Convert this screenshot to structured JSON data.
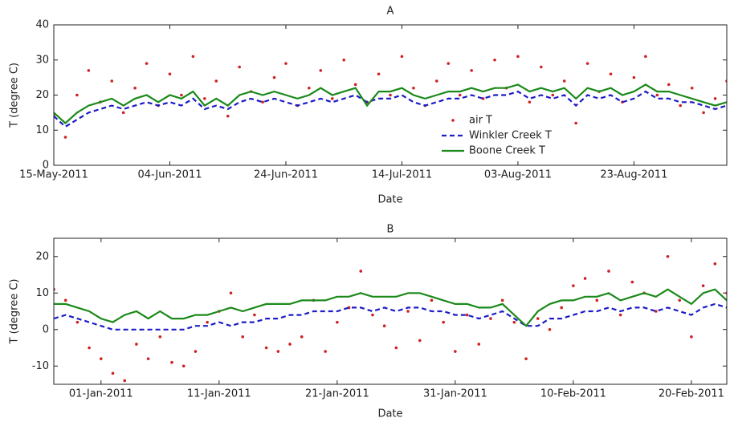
{
  "chart_data": [
    {
      "type": "line",
      "title": "A",
      "x_label": "Date",
      "y_label": "T (degree C)",
      "x": [
        "15-May-2011",
        "17-May-2011",
        "19-May-2011",
        "21-May-2011",
        "23-May-2011",
        "25-May-2011",
        "27-May-2011",
        "29-May-2011",
        "31-May-2011",
        "02-Jun-2011",
        "04-Jun-2011",
        "06-Jun-2011",
        "08-Jun-2011",
        "10-Jun-2011",
        "12-Jun-2011",
        "14-Jun-2011",
        "16-Jun-2011",
        "18-Jun-2011",
        "20-Jun-2011",
        "22-Jun-2011",
        "24-Jun-2011",
        "26-Jun-2011",
        "28-Jun-2011",
        "30-Jun-2011",
        "02-Jul-2011",
        "04-Jul-2011",
        "06-Jul-2011",
        "08-Jul-2011",
        "10-Jul-2011",
        "12-Jul-2011",
        "14-Jul-2011",
        "16-Jul-2011",
        "18-Jul-2011",
        "20-Jul-2011",
        "22-Jul-2011",
        "24-Jul-2011",
        "26-Jul-2011",
        "28-Jul-2011",
        "30-Jul-2011",
        "01-Aug-2011",
        "03-Aug-2011",
        "05-Aug-2011",
        "07-Aug-2011",
        "09-Aug-2011",
        "11-Aug-2011",
        "13-Aug-2011",
        "15-Aug-2011",
        "17-Aug-2011",
        "19-Aug-2011",
        "21-Aug-2011",
        "23-Aug-2011",
        "25-Aug-2011",
        "27-Aug-2011",
        "29-Aug-2011",
        "31-Aug-2011",
        "02-Sep-2011",
        "04-Sep-2011",
        "06-Sep-2011",
        "08-Sep-2011"
      ],
      "series": [
        {
          "name": "air T",
          "color": "#d02020",
          "style": "dots",
          "values": [
            14,
            8,
            20,
            27,
            18,
            24,
            15,
            22,
            29,
            17,
            26,
            20,
            31,
            19,
            24,
            14,
            28,
            21,
            18,
            25,
            29,
            17,
            22,
            27,
            19,
            30,
            23,
            18,
            26,
            20,
            31,
            22,
            17,
            24,
            29,
            20,
            27,
            19,
            30,
            22,
            31,
            18,
            28,
            20,
            24,
            12,
            29,
            21,
            26,
            18,
            25,
            31,
            20,
            23,
            17,
            22,
            15,
            19,
            24
          ]
        },
        {
          "name": "Winkler Creek T",
          "color": "#1c1cc8",
          "style": "dashed",
          "values": [
            14,
            11,
            13,
            15,
            16,
            17,
            16,
            17,
            18,
            17,
            18,
            17,
            19,
            16,
            17,
            16,
            18,
            19,
            18,
            19,
            18,
            17,
            18,
            19,
            18,
            19,
            20,
            18,
            19,
            19,
            20,
            18,
            17,
            18,
            19,
            19,
            20,
            19,
            20,
            20,
            21,
            19,
            20,
            19,
            20,
            17,
            20,
            19,
            20,
            18,
            19,
            21,
            19,
            19,
            18,
            18,
            17,
            16,
            17
          ]
        },
        {
          "name": "Boone Creek T",
          "color": "#1a8a1a",
          "style": "solid",
          "values": [
            15,
            12,
            15,
            17,
            18,
            19,
            17,
            19,
            20,
            18,
            20,
            19,
            21,
            17,
            19,
            17,
            20,
            21,
            20,
            21,
            20,
            19,
            20,
            22,
            20,
            21,
            22,
            17,
            21,
            21,
            22,
            20,
            19,
            20,
            21,
            21,
            22,
            21,
            22,
            22,
            23,
            21,
            22,
            21,
            22,
            19,
            22,
            21,
            22,
            20,
            21,
            23,
            21,
            21,
            20,
            19,
            18,
            17,
            18
          ]
        }
      ],
      "xlim": [
        "15-May-2011",
        "08-Sep-2011"
      ],
      "xticks": [
        "15-May-2011",
        "04-Jun-2011",
        "24-Jun-2011",
        "14-Jul-2011",
        "03-Aug-2011",
        "23-Aug-2011"
      ],
      "ylim": [
        0,
        40
      ],
      "yticks": [
        0,
        10,
        20,
        30,
        40
      ],
      "legend": "center"
    },
    {
      "type": "line",
      "title": "B",
      "x_label": "Date",
      "y_label": "T (degree C)",
      "x": [
        "28-Dec-2010",
        "29-Dec-2010",
        "30-Dec-2010",
        "31-Dec-2010",
        "01-Jan-2011",
        "02-Jan-2011",
        "03-Jan-2011",
        "04-Jan-2011",
        "05-Jan-2011",
        "06-Jan-2011",
        "07-Jan-2011",
        "08-Jan-2011",
        "09-Jan-2011",
        "10-Jan-2011",
        "11-Jan-2011",
        "12-Jan-2011",
        "13-Jan-2011",
        "14-Jan-2011",
        "15-Jan-2011",
        "16-Jan-2011",
        "17-Jan-2011",
        "18-Jan-2011",
        "19-Jan-2011",
        "20-Jan-2011",
        "21-Jan-2011",
        "22-Jan-2011",
        "23-Jan-2011",
        "24-Jan-2011",
        "25-Jan-2011",
        "26-Jan-2011",
        "27-Jan-2011",
        "28-Jan-2011",
        "29-Jan-2011",
        "30-Jan-2011",
        "31-Jan-2011",
        "01-Feb-2011",
        "02-Feb-2011",
        "03-Feb-2011",
        "04-Feb-2011",
        "05-Feb-2011",
        "06-Feb-2011",
        "07-Feb-2011",
        "08-Feb-2011",
        "09-Feb-2011",
        "10-Feb-2011",
        "11-Feb-2011",
        "12-Feb-2011",
        "13-Feb-2011",
        "14-Feb-2011",
        "15-Feb-2011",
        "16-Feb-2011",
        "17-Feb-2011",
        "18-Feb-2011",
        "19-Feb-2011",
        "20-Feb-2011",
        "21-Feb-2011",
        "22-Feb-2011",
        "23-Feb-2011"
      ],
      "series": [
        {
          "name": "air T",
          "color": "#d02020",
          "style": "dots",
          "values": [
            11,
            8,
            2,
            -5,
            -8,
            -12,
            -14,
            -4,
            -8,
            -2,
            -9,
            -10,
            -6,
            2,
            5,
            10,
            -2,
            4,
            -5,
            -6,
            -4,
            -2,
            8,
            -6,
            2,
            6,
            16,
            4,
            1,
            -5,
            5,
            -3,
            8,
            2,
            -6,
            4,
            -4,
            3,
            8,
            2,
            -8,
            3,
            0,
            6,
            12,
            14,
            8,
            16,
            4,
            13,
            10,
            5,
            20,
            8,
            -2,
            12,
            18,
            10
          ]
        },
        {
          "name": "Winkler Creek T",
          "color": "#1c1cc8",
          "style": "dashed",
          "values": [
            3,
            4,
            3,
            2,
            1,
            0,
            0,
            0,
            0,
            0,
            0,
            0,
            1,
            1,
            2,
            1,
            2,
            2,
            3,
            3,
            4,
            4,
            5,
            5,
            5,
            6,
            6,
            5,
            6,
            5,
            6,
            6,
            5,
            5,
            4,
            4,
            3,
            4,
            5,
            3,
            1,
            1,
            3,
            3,
            4,
            5,
            5,
            6,
            5,
            6,
            6,
            5,
            6,
            5,
            4,
            6,
            7,
            6
          ]
        },
        {
          "name": "Boone Creek T",
          "color": "#1a8a1a",
          "style": "solid",
          "values": [
            7,
            7,
            6,
            5,
            3,
            2,
            4,
            5,
            3,
            5,
            3,
            3,
            4,
            4,
            5,
            6,
            5,
            6,
            7,
            7,
            7,
            8,
            8,
            8,
            9,
            9,
            10,
            9,
            9,
            9,
            10,
            10,
            9,
            8,
            7,
            7,
            6,
            6,
            7,
            4,
            1,
            5,
            7,
            8,
            8,
            9,
            9,
            10,
            8,
            9,
            10,
            9,
            11,
            9,
            7,
            10,
            11,
            8
          ]
        }
      ],
      "xlim": [
        "28-Dec-2010",
        "23-Feb-2011"
      ],
      "xticks": [
        "01-Jan-2011",
        "11-Jan-2011",
        "21-Jan-2011",
        "31-Jan-2011",
        "10-Feb-2011",
        "20-Feb-2011"
      ],
      "ylim": [
        -15,
        25
      ],
      "yticks": [
        -10,
        0,
        10,
        20
      ]
    }
  ]
}
